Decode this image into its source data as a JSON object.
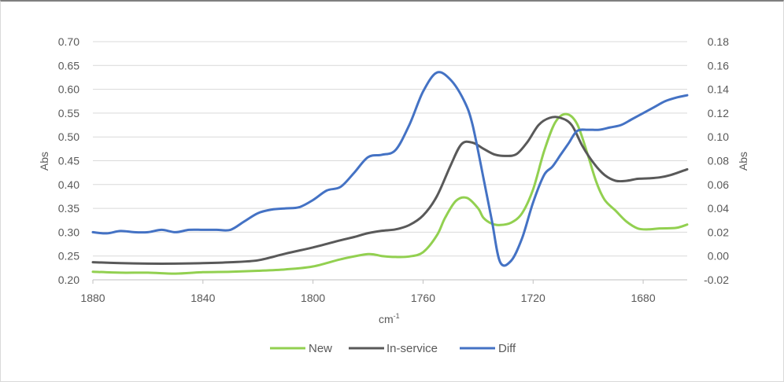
{
  "chart_data": {
    "type": "line",
    "xlabel": "cm",
    "xlabel_sup": "-1",
    "ylabel_left": "Abs",
    "ylabel_right": "Abs",
    "xlim": [
      1880,
      1664
    ],
    "x_reversed": true,
    "x_ticks": [
      1880,
      1840,
      1800,
      1760,
      1720,
      1680
    ],
    "ylim_left": [
      0.2,
      0.7
    ],
    "y_ticks_left": [
      "0.20",
      "0.25",
      "0.30",
      "0.35",
      "0.40",
      "0.45",
      "0.50",
      "0.55",
      "0.60",
      "0.65",
      "0.70"
    ],
    "ylim_right": [
      -0.02,
      0.18
    ],
    "y_ticks_right": [
      "-0.02",
      "0.00",
      "0.02",
      "0.04",
      "0.06",
      "0.08",
      "0.10",
      "0.12",
      "0.14",
      "0.16",
      "0.18"
    ],
    "grid": "horizontal",
    "legend_position": "bottom",
    "series": [
      {
        "name": "New",
        "axis": "left",
        "color": "#92d050",
        "x": [
          1880,
          1870,
          1860,
          1850,
          1840,
          1830,
          1820,
          1810,
          1800,
          1790,
          1780,
          1775,
          1770,
          1765,
          1760,
          1755,
          1752,
          1748,
          1744,
          1740,
          1738,
          1735,
          1732,
          1728,
          1724,
          1720,
          1716,
          1712,
          1708,
          1704,
          1700,
          1697,
          1694,
          1690,
          1686,
          1682,
          1678,
          1674,
          1668,
          1664
        ],
        "y": [
          0.217,
          0.215,
          0.215,
          0.213,
          0.216,
          0.217,
          0.219,
          0.222,
          0.228,
          0.243,
          0.254,
          0.25,
          0.248,
          0.249,
          0.258,
          0.293,
          0.33,
          0.366,
          0.372,
          0.35,
          0.33,
          0.318,
          0.315,
          0.32,
          0.34,
          0.39,
          0.47,
          0.53,
          0.548,
          0.527,
          0.46,
          0.405,
          0.368,
          0.345,
          0.322,
          0.308,
          0.306,
          0.308,
          0.309,
          0.316
        ]
      },
      {
        "name": "In-service",
        "axis": "left",
        "color": "#595959",
        "x": [
          1880,
          1870,
          1860,
          1850,
          1840,
          1830,
          1820,
          1810,
          1800,
          1790,
          1785,
          1780,
          1775,
          1770,
          1765,
          1760,
          1755,
          1750,
          1746,
          1742,
          1738,
          1734,
          1730,
          1726,
          1722,
          1718,
          1714,
          1710,
          1706,
          1702,
          1698,
          1694,
          1690,
          1686,
          1682,
          1678,
          1674,
          1670,
          1664
        ],
        "y": [
          0.237,
          0.235,
          0.234,
          0.234,
          0.235,
          0.237,
          0.241,
          0.255,
          0.268,
          0.283,
          0.29,
          0.298,
          0.303,
          0.306,
          0.315,
          0.335,
          0.375,
          0.44,
          0.485,
          0.488,
          0.475,
          0.463,
          0.46,
          0.464,
          0.49,
          0.525,
          0.54,
          0.54,
          0.525,
          0.48,
          0.445,
          0.42,
          0.408,
          0.408,
          0.412,
          0.413,
          0.415,
          0.42,
          0.432
        ]
      },
      {
        "name": "Diff",
        "axis": "right",
        "color": "#4472c4",
        "x": [
          1880,
          1875,
          1870,
          1865,
          1860,
          1855,
          1850,
          1845,
          1840,
          1835,
          1830,
          1825,
          1820,
          1815,
          1810,
          1805,
          1800,
          1795,
          1790,
          1785,
          1780,
          1775,
          1770,
          1765,
          1760,
          1755,
          1750,
          1745,
          1742,
          1738,
          1735,
          1732,
          1728,
          1724,
          1720,
          1716,
          1713,
          1710,
          1707,
          1704,
          1700,
          1696,
          1692,
          1688,
          1684,
          1680,
          1676,
          1672,
          1668,
          1664
        ],
        "y": [
          0.02,
          0.019,
          0.021,
          0.02,
          0.02,
          0.022,
          0.02,
          0.022,
          0.022,
          0.022,
          0.022,
          0.029,
          0.036,
          0.039,
          0.04,
          0.041,
          0.047,
          0.055,
          0.058,
          0.07,
          0.083,
          0.085,
          0.089,
          0.11,
          0.138,
          0.154,
          0.148,
          0.13,
          0.11,
          0.065,
          0.03,
          -0.005,
          -0.004,
          0.015,
          0.045,
          0.068,
          0.075,
          0.085,
          0.095,
          0.105,
          0.106,
          0.106,
          0.108,
          0.11,
          0.115,
          0.12,
          0.125,
          0.13,
          0.133,
          0.135
        ]
      }
    ]
  }
}
